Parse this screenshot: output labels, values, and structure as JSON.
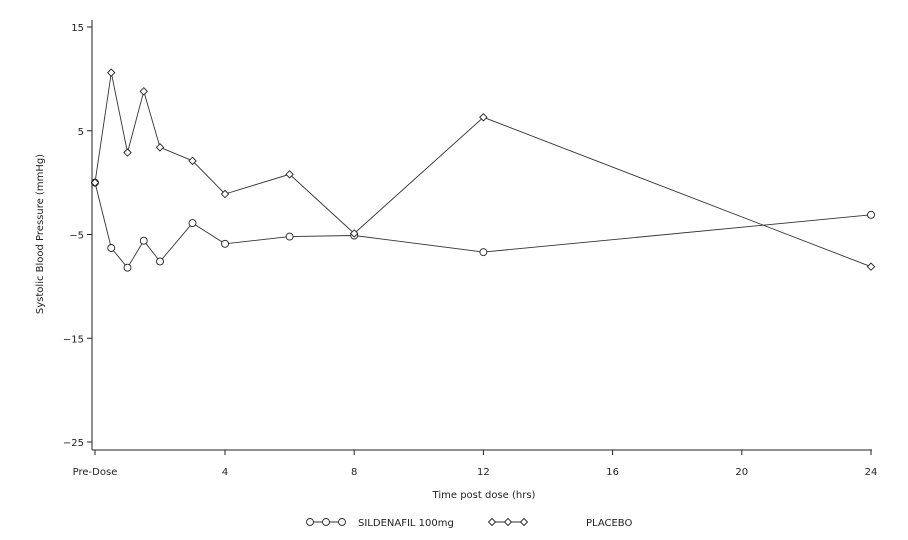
{
  "chart_data": {
    "type": "line",
    "xlabel": "Time post dose (hrs)",
    "ylabel": "Systolic Blood Pressure (mmHg)",
    "xlim": [
      0,
      24
    ],
    "ylim": [
      -26,
      15
    ],
    "x_ticks": [
      {
        "value": 0,
        "label": "Pre-Dose"
      },
      {
        "value": 4,
        "label": "4"
      },
      {
        "value": 8,
        "label": "8"
      },
      {
        "value": 12,
        "label": "12"
      },
      {
        "value": 16,
        "label": "16"
      },
      {
        "value": 20,
        "label": "20"
      },
      {
        "value": 24,
        "label": "24"
      }
    ],
    "y_ticks": [
      {
        "value": 15,
        "label": "15"
      },
      {
        "value": 5,
        "label": "5"
      },
      {
        "value": -5,
        "label": "-5"
      },
      {
        "value": -15,
        "label": "-15"
      },
      {
        "value": -25,
        "label": "-25"
      }
    ],
    "grid": false,
    "legend_position": "bottom",
    "series": [
      {
        "name": "SILDENAFIL 100mg",
        "marker": "circle",
        "x": [
          0,
          0.5,
          1,
          1.5,
          2,
          3,
          4,
          6,
          8,
          12,
          24
        ],
        "y": [
          0,
          -6.3,
          -8.2,
          -5.6,
          -7.6,
          -3.9,
          -5.9,
          -5.2,
          -5.1,
          -6.7,
          -3.1
        ]
      },
      {
        "name": "PLACEBO",
        "marker": "diamond",
        "x": [
          0,
          0.5,
          1,
          1.5,
          2,
          3,
          4,
          6,
          8,
          12,
          24
        ],
        "y": [
          0,
          10.6,
          2.9,
          8.8,
          3.4,
          2.1,
          -1.1,
          0.8,
          -4.9,
          6.3,
          -8.1
        ]
      }
    ]
  }
}
